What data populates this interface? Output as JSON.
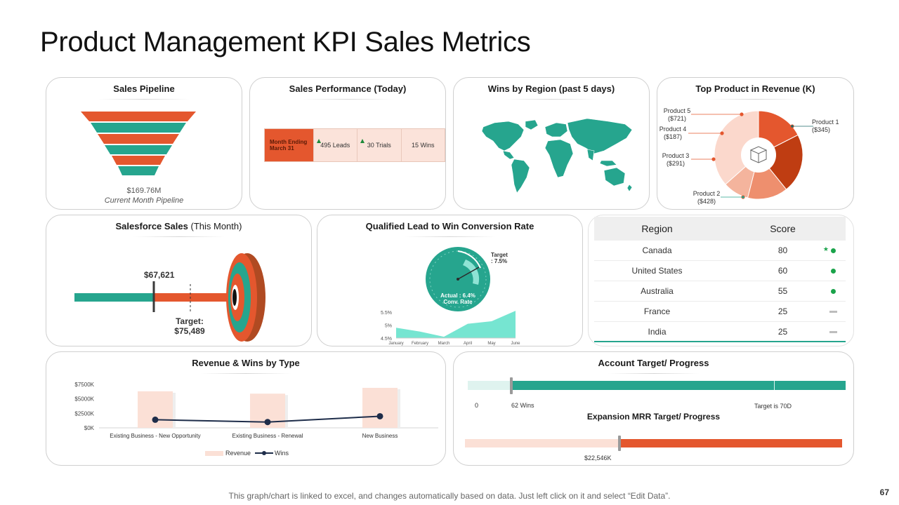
{
  "page": {
    "title": "Product Management KPI Sales Metrics",
    "footer_note": "This graph/chart is linked to excel, and changes automatically based on data. Just left click on it and select “Edit Data”.",
    "page_number": "67"
  },
  "colors": {
    "teal": "#26a58e",
    "orange": "#e4572e",
    "peach": "#fbe3da",
    "navy": "#1e2d4a"
  },
  "sales_pipeline": {
    "title": "Sales Pipeline",
    "amount": "$169.76M",
    "caption": "Current Month Pipeline"
  },
  "sales_performance": {
    "title": "Sales Performance (Today)",
    "period": "Month Ending March 31",
    "leads": "495 Leads",
    "trials": "30 Trials",
    "wins": "15 Wins"
  },
  "wins_by_region": {
    "title": "Wins by Region (past 5 days)"
  },
  "top_product": {
    "title": "Top Product in Revenue (K)",
    "labels": [
      "Product 1 ($345)",
      "Product 2 ($428)",
      "Product 3 ($291)",
      "Product 4 ($187)",
      "Product 5 ($721)"
    ]
  },
  "salesforce_sales": {
    "title": "Salesforce Sales",
    "title_suffix": "(This Month)",
    "actual": "$67,621",
    "target_label": "Target:",
    "target_value": "$75,489"
  },
  "conversion_rate": {
    "title": "Qualified Lead to Win Conversion Rate",
    "target_label": "Target",
    "target_value": ": 7.5%",
    "actual_label": "Actual  : 6.4%",
    "actual_sub": "Conv. Rate"
  },
  "region_table": {
    "headers": [
      "Region",
      "Score"
    ],
    "rows": [
      {
        "region": "Canada",
        "score": "80",
        "status": "up-star"
      },
      {
        "region": "United States",
        "score": "60",
        "status": "up"
      },
      {
        "region": "Australia",
        "score": "55",
        "status": "up"
      },
      {
        "region": "France",
        "score": "25",
        "status": "flat"
      },
      {
        "region": "India",
        "score": "25",
        "status": "flat"
      }
    ]
  },
  "revenue_wins": {
    "title": "Revenue & Wins by Type",
    "legend_revenue": "Revenue",
    "legend_wins": "Wins"
  },
  "account_target": {
    "title": "Account Target/ Progress",
    "start_label": "0",
    "current_label": "62 Wins",
    "target_label": "Target  is 70D",
    "progress_fraction": 0.885,
    "expansion_title": "Expansion MRR Target/ Progress",
    "expansion_value": "$22,546K",
    "expansion_fraction": 0.41
  },
  "chart_data": [
    {
      "type": "pie",
      "title": "Top Product in Revenue (K)",
      "categories": [
        "Product 1",
        "Product 2",
        "Product 3",
        "Product 4",
        "Product 5"
      ],
      "values": [
        345,
        428,
        291,
        187,
        721
      ]
    },
    {
      "type": "area",
      "title": "Conversion Rate by Month",
      "categories": [
        "January",
        "February",
        "March",
        "April",
        "May",
        "June"
      ],
      "values": [
        4.9,
        4.75,
        4.55,
        5.05,
        5.15,
        5.55
      ],
      "yticks": [
        "4.5%",
        "5%",
        "5.5%"
      ],
      "ylim": [
        4.5,
        5.5
      ]
    },
    {
      "type": "bar",
      "title": "Revenue & Wins by Type",
      "categories": [
        "Existing Business - New Opportunity",
        "Existing Business - Renewal",
        "New Business"
      ],
      "series": [
        {
          "name": "Revenue",
          "values": [
            6300,
            5900,
            6900
          ]
        },
        {
          "name": "Wins",
          "values": [
            1400,
            1000,
            2000
          ]
        }
      ],
      "yticks": [
        "$0K",
        "$2500K",
        "$5000K",
        "$7500K"
      ],
      "ylim": [
        0,
        7500
      ]
    }
  ]
}
